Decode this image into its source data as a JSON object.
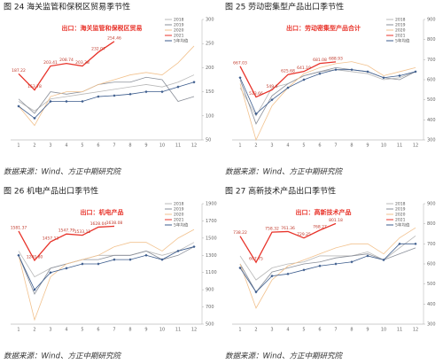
{
  "chart_data": [
    {
      "type": "line",
      "title": "图 24  海关监管和保税区贸易季节性",
      "annotation": "出口：海关监管和保税区贸易",
      "source": "数据来源：Wind、方正中期研究院",
      "categories": [
        "1",
        "2",
        "3",
        "4",
        "5",
        "6",
        "7",
        "8",
        "9",
        "10",
        "11",
        "12"
      ],
      "ylim": [
        50,
        300
      ],
      "yticks": [
        50,
        100,
        150,
        200,
        250,
        300
      ],
      "series": [
        {
          "name": "2018",
          "color": "#b8b8b8",
          "values": [
            130,
            110,
            135,
            140,
            145,
            150,
            155,
            160,
            165,
            160,
            170,
            185
          ]
        },
        {
          "name": "2019",
          "color": "#8a8f99",
          "values": [
            135,
            105,
            150,
            145,
            150,
            165,
            170,
            170,
            180,
            175,
            130,
            140
          ]
        },
        {
          "name": "2020",
          "color": "#f2c28e",
          "values": [
            120,
            80,
            140,
            150,
            150,
            165,
            175,
            185,
            190,
            185,
            210,
            245
          ]
        },
        {
          "name": "2021",
          "color": "#e8332a",
          "values": [
            187.22,
            153.78,
            203.41,
            208.74,
            203.38,
            232.07,
            254.46,
            null,
            null,
            null,
            null,
            null
          ],
          "value_labels": [
            "187.22",
            "153.78",
            "203.41",
            "208.74",
            "203.38",
            "232.07",
            "254.46",
            null,
            null,
            null,
            null,
            null
          ]
        },
        {
          "name": "5年均值",
          "color": "#3b5b8c",
          "marker": "diamond",
          "values": [
            120,
            95,
            130,
            130,
            130,
            140,
            142,
            145,
            150,
            150,
            160,
            170
          ]
        }
      ]
    },
    {
      "type": "line",
      "title": "图 25  劳动密集型产品出口季节性",
      "annotation": "出口：劳动密集型产品合计",
      "source": "数据来源：Wind、方正中期研究院",
      "categories": [
        "1",
        "2",
        "3",
        "4",
        "5",
        "6",
        "7",
        "8",
        "9",
        "10",
        "11",
        "12"
      ],
      "ylim": [
        300,
        900
      ],
      "yticks": [
        300,
        400,
        500,
        600,
        700,
        800,
        900
      ],
      "series": [
        {
          "name": "2018",
          "color": "#b8b8b8",
          "values": [
            560,
            420,
            560,
            580,
            620,
            640,
            650,
            640,
            630,
            600,
            610,
            640
          ]
        },
        {
          "name": "2019",
          "color": "#8a8f99",
          "values": [
            600,
            380,
            520,
            580,
            620,
            640,
            660,
            650,
            640,
            610,
            600,
            640
          ]
        },
        {
          "name": "2020",
          "color": "#f2c28e",
          "values": [
            580,
            300,
            470,
            560,
            630,
            660,
            680,
            690,
            670,
            620,
            640,
            660
          ]
        },
        {
          "name": "2021",
          "color": "#e8332a",
          "values": [
            667.03,
            513.66,
            549.6,
            625.68,
            641.19,
            681.08,
            688.93,
            null,
            null,
            null,
            null,
            null
          ],
          "value_labels": [
            "667.03",
            "513.66",
            "549.6",
            "625.68",
            "641.19",
            "681.08",
            "688.93",
            null,
            null,
            null,
            null,
            null
          ]
        },
        {
          "name": "5年均值",
          "color": "#3b5b8c",
          "marker": "diamond",
          "values": [
            610,
            430,
            500,
            560,
            600,
            630,
            650,
            650,
            640,
            610,
            620,
            640
          ]
        }
      ]
    },
    {
      "type": "line",
      "title": "图 26  机电产品出口季节性",
      "annotation": "出口：机电产品",
      "source": "数据来源：Wind、方正中期研究院",
      "categories": [
        "1",
        "2",
        "3",
        "4",
        "5",
        "6",
        "7",
        "8",
        "9",
        "10",
        "11",
        "12"
      ],
      "ylim": [
        500,
        1900
      ],
      "yticks": [
        500,
        700,
        900,
        1100,
        1300,
        1500,
        1700,
        1900
      ],
      "series": [
        {
          "name": "2018",
          "color": "#b8b8b8",
          "values": [
            1350,
            1050,
            1150,
            1200,
            1250,
            1300,
            1300,
            1300,
            1350,
            1300,
            1350,
            1450
          ]
        },
        {
          "name": "2019",
          "color": "#8a8f99",
          "values": [
            1300,
            850,
            1150,
            1200,
            1250,
            1250,
            1300,
            1300,
            1350,
            1250,
            1300,
            1400
          ]
        },
        {
          "name": "2020",
          "color": "#f2c28e",
          "values": [
            1300,
            550,
            1050,
            1200,
            1250,
            1300,
            1400,
            1450,
            1450,
            1350,
            1500,
            1600
          ]
        },
        {
          "name": "2021",
          "color": "#e8332a",
          "values": [
            1581.37,
            1240.8,
            1457.13,
            1547.79,
            1533.11,
            1628.04,
            1638.08,
            null,
            null,
            null,
            null,
            null
          ],
          "value_labels": [
            "1581.37",
            "1240.80",
            "1457.13",
            "1547.79",
            "1533.11",
            "1628.04",
            "1638.08",
            null,
            null,
            null,
            null,
            null
          ]
        },
        {
          "name": "5年均值",
          "color": "#3b5b8c",
          "marker": "diamond",
          "values": [
            1300,
            900,
            1100,
            1150,
            1200,
            1200,
            1250,
            1250,
            1300,
            1250,
            1350,
            1400
          ]
        }
      ]
    },
    {
      "type": "line",
      "title": "图 27  高新技术产品出口季节性",
      "annotation": "出口：高新技术产品",
      "source": "数据来源：Wind、方正中期研究院",
      "categories": [
        "1",
        "2",
        "3",
        "4",
        "5",
        "6",
        "7",
        "8",
        "9",
        "10",
        "11",
        "12"
      ],
      "ylim": [
        300,
        900
      ],
      "yticks": [
        300,
        400,
        500,
        600,
        700,
        800,
        900
      ],
      "series": [
        {
          "name": "2018",
          "color": "#b8b8b8",
          "values": [
            640,
            520,
            580,
            600,
            610,
            640,
            640,
            640,
            660,
            620,
            680,
            740
          ]
        },
        {
          "name": "2019",
          "color": "#8a8f99",
          "values": [
            600,
            460,
            560,
            580,
            600,
            610,
            630,
            640,
            650,
            620,
            650,
            680
          ]
        },
        {
          "name": "2020",
          "color": "#f2c28e",
          "values": [
            600,
            380,
            520,
            590,
            620,
            650,
            680,
            700,
            700,
            650,
            730,
            780
          ]
        },
        {
          "name": "2021",
          "color": "#e8332a",
          "values": [
            738.22,
            607.75,
            758.32,
            761.36,
            729.25,
            768.27,
            801.18,
            null,
            null,
            null,
            null,
            null
          ],
          "value_labels": [
            "738.22",
            "607.75",
            "758.32",
            "761.36",
            "729.25",
            "768.27",
            "801.18",
            null,
            null,
            null,
            null,
            null
          ]
        },
        {
          "name": "5年均值",
          "color": "#3b5b8c",
          "marker": "diamond",
          "values": [
            580,
            460,
            540,
            550,
            570,
            590,
            600,
            610,
            640,
            620,
            700,
            700
          ]
        }
      ]
    }
  ]
}
